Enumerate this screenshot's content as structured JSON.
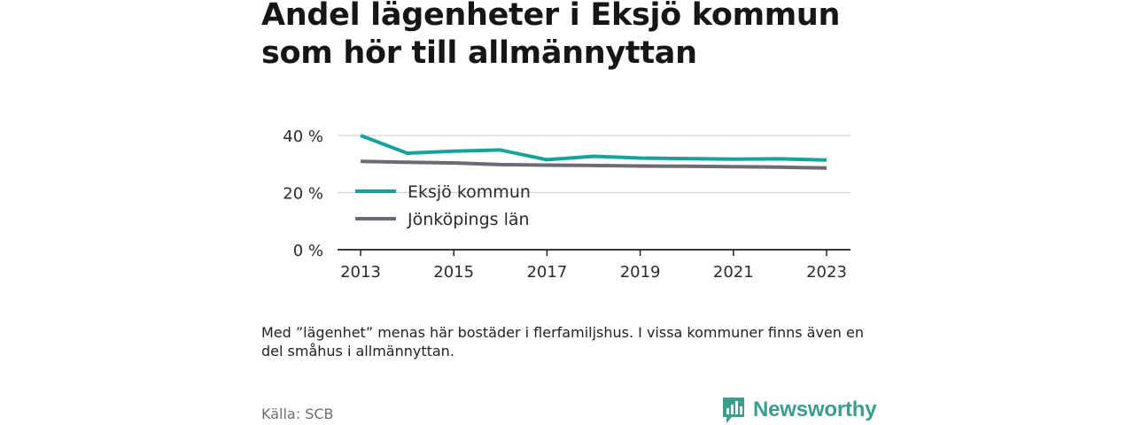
{
  "title": "Andel lägenheter i Eksjö kommun som hör till allmännyttan",
  "note": "Med ”lägenhet” menas här bostäder i flerfamiljshus. I vissa kommuner finns även en del småhus i allmännyttan.",
  "source": "Källa: SCB",
  "brand": {
    "name": "Newsworthy",
    "icon": "bar-chart-speech-bubble-icon",
    "color": "#3a9e8f"
  },
  "chart_data": {
    "type": "line",
    "x": [
      2013,
      2014,
      2015,
      2016,
      2017,
      2018,
      2019,
      2020,
      2021,
      2022,
      2023
    ],
    "series": [
      {
        "name": "Eksjö kommun",
        "color": "#18a39a",
        "values": [
          40.0,
          33.8,
          34.5,
          34.9,
          31.5,
          32.7,
          32.1,
          31.9,
          31.7,
          31.8,
          31.4
        ]
      },
      {
        "name": "Jönköpings län",
        "color": "#6b6b73",
        "values": [
          30.9,
          30.6,
          30.4,
          29.8,
          29.6,
          29.5,
          29.3,
          29.2,
          29.1,
          28.9,
          28.6
        ]
      }
    ],
    "x_ticks": [
      2013,
      2015,
      2017,
      2019,
      2021,
      2023
    ],
    "x_tick_labels": [
      "2013",
      "2015",
      "2017",
      "2019",
      "2021",
      "2023"
    ],
    "y_ticks": [
      0,
      20,
      40
    ],
    "y_tick_labels": [
      "0 %",
      "20 %",
      "40 %"
    ],
    "ylim": [
      0,
      40
    ],
    "xlim": [
      2013,
      2023
    ],
    "grid": true,
    "legend_position": "left, inside plot"
  }
}
